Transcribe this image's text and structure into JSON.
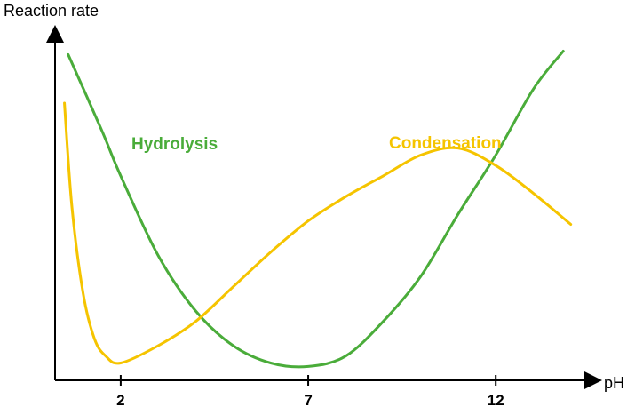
{
  "chart_data": {
    "type": "line",
    "xlabel": "pH",
    "ylabel": "Reaction rate",
    "xlim": [
      0.25,
      14.6
    ],
    "ylim": [
      0,
      1
    ],
    "ticks": [
      2,
      7,
      12
    ],
    "tick_labels": [
      "2",
      "7",
      "12"
    ],
    "grid": false,
    "series": [
      {
        "name": "Hydrolysis",
        "color": "#4aac3a",
        "x": [
          0.6,
          1.5,
          2.0,
          3.0,
          4.0,
          5.0,
          6.0,
          7.0,
          8.0,
          9.0,
          10.0,
          11.0,
          12.0,
          13.0,
          13.8
        ],
        "y": [
          0.94,
          0.72,
          0.59,
          0.36,
          0.2,
          0.1,
          0.05,
          0.04,
          0.07,
          0.17,
          0.3,
          0.48,
          0.65,
          0.84,
          0.95
        ]
      },
      {
        "name": "Condensation",
        "color": "#f5c400",
        "x": [
          0.5,
          0.7,
          1.0,
          1.3,
          1.6,
          2.0,
          3.0,
          4.0,
          5.0,
          6.0,
          7.0,
          8.0,
          9.0,
          10.0,
          11.0,
          12.0,
          13.0,
          14.0
        ],
        "y": [
          0.8,
          0.5,
          0.25,
          0.12,
          0.07,
          0.05,
          0.1,
          0.17,
          0.27,
          0.37,
          0.46,
          0.53,
          0.59,
          0.65,
          0.67,
          0.62,
          0.54,
          0.45
        ]
      }
    ],
    "series_label_colors": {
      "Hydrolysis": "#4aac3a",
      "Condensation": "#f5c400"
    }
  }
}
